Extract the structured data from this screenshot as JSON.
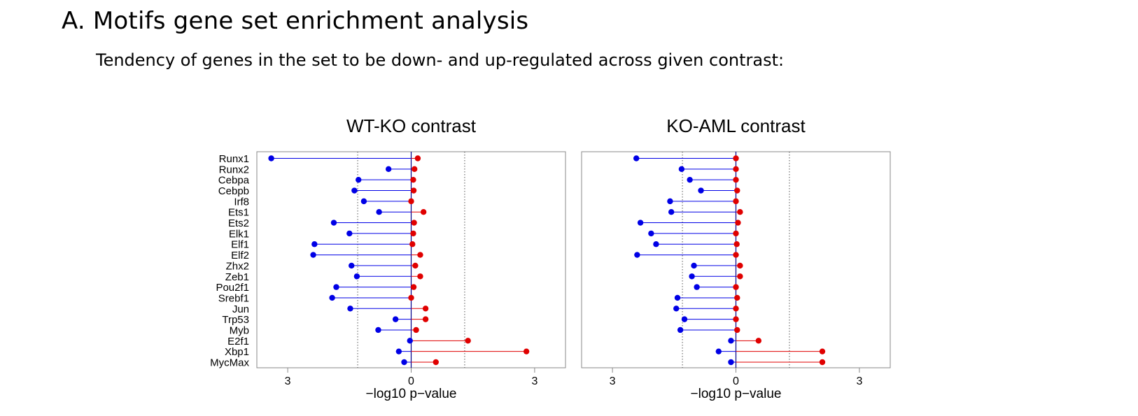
{
  "page": {
    "title": "A. Motifs gene set enrichment analysis",
    "subtitle": "Tendency of genes in the set to be down- and up-regulated across given contrast:"
  },
  "chart_data": [
    {
      "type": "dumbbell",
      "title": "WT-KO contrast",
      "xlabel": "−log10 p−value",
      "xlim": [
        -3.75,
        3.75
      ],
      "xticks": [
        -3,
        0,
        3
      ],
      "xtick_labels": [
        "3",
        "0",
        "3"
      ],
      "reference_lines": [
        -1.3,
        1.3
      ],
      "categories": [
        "Runx1",
        "Runx2",
        "Cebpa",
        "Cebpb",
        "Irf8",
        "Ets1",
        "Ets2",
        "Elk1",
        "Elf1",
        "Elf2",
        "Zhx2",
        "Zeb1",
        "Pou2f1",
        "Srebf1",
        "Jun",
        "Trp53",
        "Myb",
        "E2f1",
        "Xbp1",
        "MycMax"
      ],
      "series": [
        {
          "values": [
            -3.4,
            -0.55,
            -1.28,
            -1.38,
            -1.15,
            -0.78,
            -1.88,
            -1.5,
            -2.35,
            -2.38,
            -1.45,
            -1.32,
            -1.82,
            -1.92,
            -1.48,
            -0.38,
            -0.8,
            -0.03,
            -0.3,
            -0.17
          ],
          "color": "#0000e6"
        },
        {
          "values": [
            0.16,
            0.08,
            0.05,
            0.06,
            0.0,
            0.3,
            0.07,
            0.05,
            0.03,
            0.22,
            0.1,
            0.22,
            0.06,
            0.0,
            0.35,
            0.35,
            0.12,
            1.38,
            2.8,
            0.6
          ],
          "color": "#e00000"
        }
      ]
    },
    {
      "type": "dumbbell",
      "title": "KO-AML contrast",
      "xlabel": "−log10 p−value",
      "xlim": [
        -3.75,
        3.75
      ],
      "xticks": [
        -3,
        0,
        3
      ],
      "xtick_labels": [
        "3",
        "0",
        "3"
      ],
      "reference_lines": [
        -1.3,
        1.3
      ],
      "categories": [
        "Runx1",
        "Runx2",
        "Cebpa",
        "Cebpb",
        "Irf8",
        "Ets1",
        "Ets2",
        "Elk1",
        "Elf1",
        "Elf2",
        "Zhx2",
        "Zeb1",
        "Pou2f1",
        "Srebf1",
        "Jun",
        "Trp53",
        "Myb",
        "E2f1",
        "Xbp1",
        "MycMax"
      ],
      "series": [
        {
          "values": [
            -2.42,
            -1.32,
            -1.12,
            -0.85,
            -1.6,
            -1.57,
            -2.32,
            -2.06,
            -1.94,
            -2.4,
            -1.02,
            -1.07,
            -0.95,
            -1.42,
            -1.45,
            -1.25,
            -1.35,
            -0.12,
            -0.42,
            -0.12
          ],
          "color": "#0000e6"
        },
        {
          "values": [
            0.0,
            0.0,
            0.0,
            0.03,
            0.0,
            0.1,
            0.05,
            0.0,
            0.02,
            0.0,
            0.1,
            0.1,
            0.0,
            0.03,
            0.0,
            0.0,
            0.03,
            0.55,
            2.1,
            2.1
          ],
          "color": "#e00000"
        }
      ]
    }
  ]
}
